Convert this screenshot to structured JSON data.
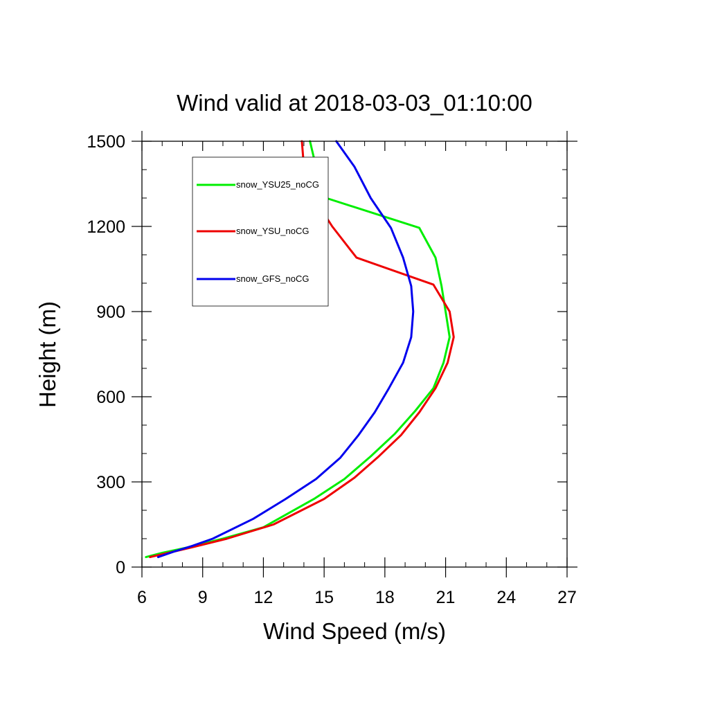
{
  "chart_data": {
    "type": "line",
    "title": "Wind valid at 2018-03-03_01:10:00",
    "xlabel": "Wind Speed (m/s)",
    "ylabel": "Height (m)",
    "xlim": [
      6,
      27
    ],
    "ylim": [
      0,
      1500
    ],
    "xticks": [
      6,
      9,
      12,
      15,
      18,
      21,
      24,
      27
    ],
    "yticks": [
      0,
      300,
      600,
      900,
      1200,
      1500
    ],
    "x_minor_step": 1,
    "y_minor_step": 100,
    "grid": false,
    "legend_position": "top-left",
    "series": [
      {
        "name": "snow_YSU25_noCG",
        "color": "#00ee00",
        "points": [
          [
            6.2,
            35
          ],
          [
            7.0,
            50
          ],
          [
            8.3,
            70
          ],
          [
            10.0,
            100
          ],
          [
            12.0,
            140
          ],
          [
            14.5,
            240
          ],
          [
            16.0,
            310
          ],
          [
            17.3,
            390
          ],
          [
            18.5,
            470
          ],
          [
            19.5,
            550
          ],
          [
            20.4,
            630
          ],
          [
            20.9,
            720
          ],
          [
            21.2,
            810
          ],
          [
            21.0,
            900
          ],
          [
            20.8,
            990
          ],
          [
            20.5,
            1090
          ],
          [
            19.7,
            1195
          ],
          [
            15.1,
            1300
          ],
          [
            14.6,
            1410
          ],
          [
            14.3,
            1500
          ]
        ]
      },
      {
        "name": "snow_YSU_noCG",
        "color": "#ee0000",
        "points": [
          [
            6.4,
            35
          ],
          [
            7.3,
            50
          ],
          [
            8.5,
            70
          ],
          [
            10.2,
            100
          ],
          [
            12.5,
            150
          ],
          [
            15.0,
            240
          ],
          [
            16.5,
            315
          ],
          [
            17.7,
            390
          ],
          [
            18.8,
            465
          ],
          [
            19.7,
            545
          ],
          [
            20.5,
            630
          ],
          [
            21.1,
            720
          ],
          [
            21.4,
            810
          ],
          [
            21.2,
            900
          ],
          [
            20.4,
            995
          ],
          [
            16.6,
            1090
          ],
          [
            15.4,
            1200
          ],
          [
            14.5,
            1300
          ],
          [
            14.0,
            1410
          ],
          [
            13.9,
            1500
          ]
        ]
      },
      {
        "name": "snow_GFS_noCG",
        "color": "#0000ee",
        "points": [
          [
            6.8,
            35
          ],
          [
            7.6,
            55
          ],
          [
            8.5,
            75
          ],
          [
            9.5,
            100
          ],
          [
            11.5,
            170
          ],
          [
            13.1,
            240
          ],
          [
            14.6,
            310
          ],
          [
            15.8,
            385
          ],
          [
            16.7,
            465
          ],
          [
            17.5,
            545
          ],
          [
            18.2,
            630
          ],
          [
            18.9,
            720
          ],
          [
            19.3,
            810
          ],
          [
            19.4,
            900
          ],
          [
            19.3,
            990
          ],
          [
            18.9,
            1090
          ],
          [
            18.3,
            1195
          ],
          [
            17.3,
            1300
          ],
          [
            16.5,
            1410
          ],
          [
            15.6,
            1500
          ]
        ]
      }
    ]
  }
}
